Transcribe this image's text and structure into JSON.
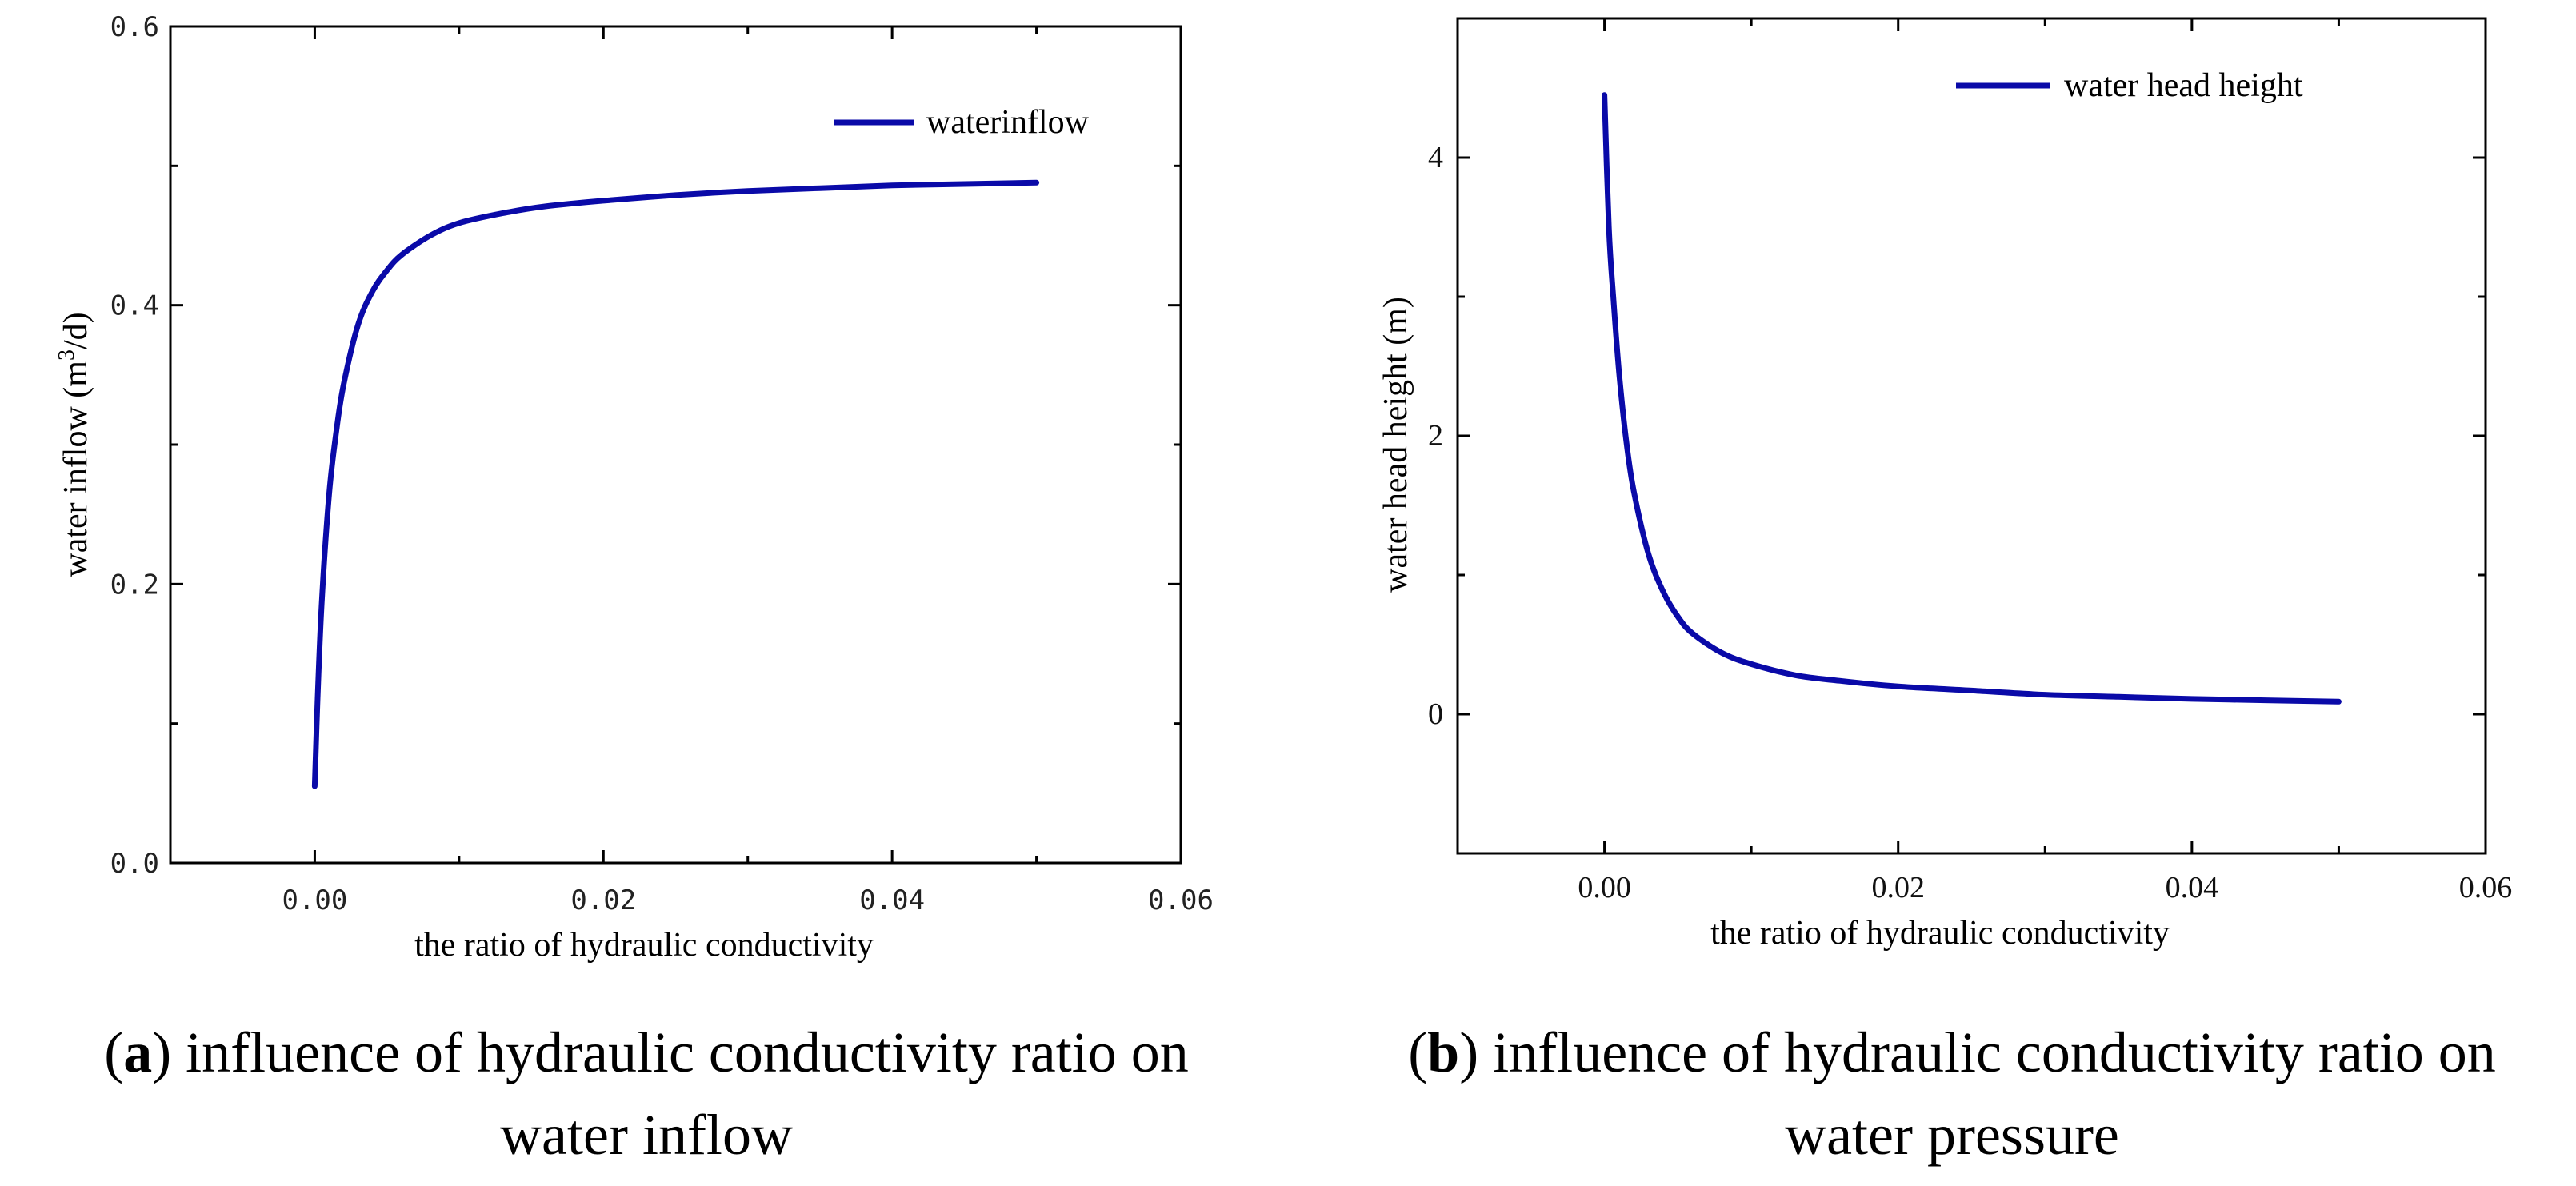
{
  "figure": {
    "captions": [
      {
        "letter": "a",
        "line1": "influence of hydraulic conductivity ratio on",
        "line2": "water inflow"
      },
      {
        "letter": "b",
        "line1": "influence of hydraulic conductivity ratio on",
        "line2": "water pressure"
      }
    ]
  },
  "chart_data": [
    {
      "type": "line",
      "title": "",
      "xlabel": "the ratio of hydraulic conductivity",
      "ylabel": "water inflow (m³/d)",
      "ylabel_parts": [
        "water inflow (m",
        "3",
        "/d)"
      ],
      "xlim": [
        -0.01,
        0.06
      ],
      "ylim": [
        0.0,
        0.6
      ],
      "x_ticks": [
        0.0,
        0.02,
        0.04,
        0.06
      ],
      "x_tick_labels": [
        "0.00",
        "0.02",
        "0.04",
        "0.06"
      ],
      "y_ticks": [
        0.0,
        0.2,
        0.4,
        0.6
      ],
      "y_tick_labels": [
        "0.0",
        "0.2",
        "0.4",
        "0.6"
      ],
      "legend_position": "top-right",
      "color": "#0A0AA8",
      "series": [
        {
          "name": "waterinflow",
          "x": [
            0.0,
            0.0002,
            0.0005,
            0.001,
            0.0015,
            0.002,
            0.003,
            0.004,
            0.005,
            0.006,
            0.008,
            0.01,
            0.013,
            0.016,
            0.02,
            0.025,
            0.03,
            0.035,
            0.04,
            0.045,
            0.05
          ],
          "y": [
            0.055,
            0.118,
            0.19,
            0.265,
            0.31,
            0.343,
            0.386,
            0.41,
            0.425,
            0.436,
            0.45,
            0.459,
            0.466,
            0.471,
            0.475,
            0.479,
            0.482,
            0.484,
            0.486,
            0.487,
            0.488
          ]
        }
      ]
    },
    {
      "type": "line",
      "title": "",
      "xlabel": "the ratio of hydraulic conductivity",
      "ylabel": "water head height (m)",
      "xlim": [
        -0.01,
        0.06
      ],
      "ylim": [
        -1.0,
        5.0
      ],
      "x_ticks": [
        0.0,
        0.02,
        0.04,
        0.06
      ],
      "x_tick_labels": [
        "0.00",
        "0.02",
        "0.04",
        "0.06"
      ],
      "y_ticks": [
        0,
        2,
        4
      ],
      "y_tick_labels": [
        "0",
        "2",
        "4"
      ],
      "legend_position": "top-right",
      "color": "#0A0AA8",
      "series": [
        {
          "name": "water head height",
          "x": [
            0.0,
            0.0003,
            0.0006,
            0.001,
            0.0015,
            0.002,
            0.003,
            0.004,
            0.005,
            0.006,
            0.008,
            0.01,
            0.013,
            0.016,
            0.02,
            0.025,
            0.03,
            0.035,
            0.04,
            0.045,
            0.05
          ],
          "y": [
            4.45,
            3.5,
            3.0,
            2.45,
            1.95,
            1.6,
            1.15,
            0.88,
            0.7,
            0.58,
            0.44,
            0.36,
            0.28,
            0.24,
            0.2,
            0.17,
            0.14,
            0.125,
            0.11,
            0.1,
            0.09
          ]
        }
      ]
    }
  ]
}
